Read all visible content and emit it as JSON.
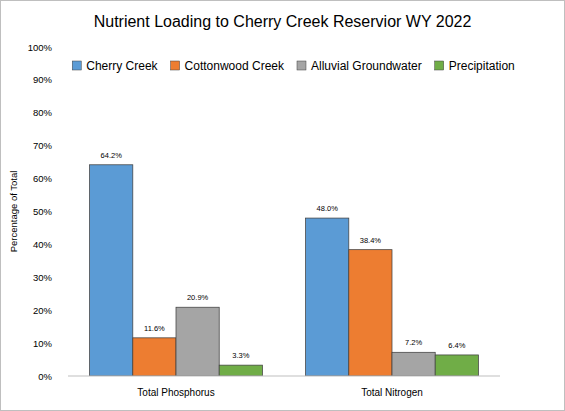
{
  "chart_data": {
    "type": "bar",
    "title": "Nutrient Loading to Cherry Creek Reservior WY 2022",
    "y_label": "Percentage of Total",
    "categories": [
      "Total Phosphorus",
      "Total Nitrogen"
    ],
    "series": [
      {
        "name": "Cherry Creek",
        "color": "#5b9bd5",
        "values": [
          64.2,
          48.0
        ],
        "value_labels": [
          "64.2%",
          "48.0%"
        ]
      },
      {
        "name": "Cottonwood Creek",
        "color": "#ed7d31",
        "values": [
          11.6,
          38.4
        ],
        "value_labels": [
          "11.6%",
          "38.4%"
        ]
      },
      {
        "name": "Alluvial Groundwater",
        "color": "#a5a5a5",
        "values": [
          20.9,
          7.2
        ],
        "value_labels": [
          "20.9%",
          "7.2%"
        ]
      },
      {
        "name": "Precipitation",
        "color": "#70ad47",
        "values": [
          3.3,
          6.4
        ],
        "value_labels": [
          "3.3%",
          "6.4%"
        ]
      }
    ],
    "ylim": [
      0,
      100
    ],
    "yticks": [
      {
        "value": 0,
        "label": "0%"
      },
      {
        "value": 10,
        "label": "10%"
      },
      {
        "value": 20,
        "label": "20%"
      },
      {
        "value": 30,
        "label": "30%"
      },
      {
        "value": 40,
        "label": "40%"
      },
      {
        "value": 50,
        "label": "50%"
      },
      {
        "value": 60,
        "label": "60%"
      },
      {
        "value": 70,
        "label": "70%"
      },
      {
        "value": 80,
        "label": "80%"
      },
      {
        "value": 90,
        "label": "90%"
      },
      {
        "value": 100,
        "label": "100%"
      }
    ],
    "grid": false,
    "legend": "top",
    "data_labels": true
  }
}
